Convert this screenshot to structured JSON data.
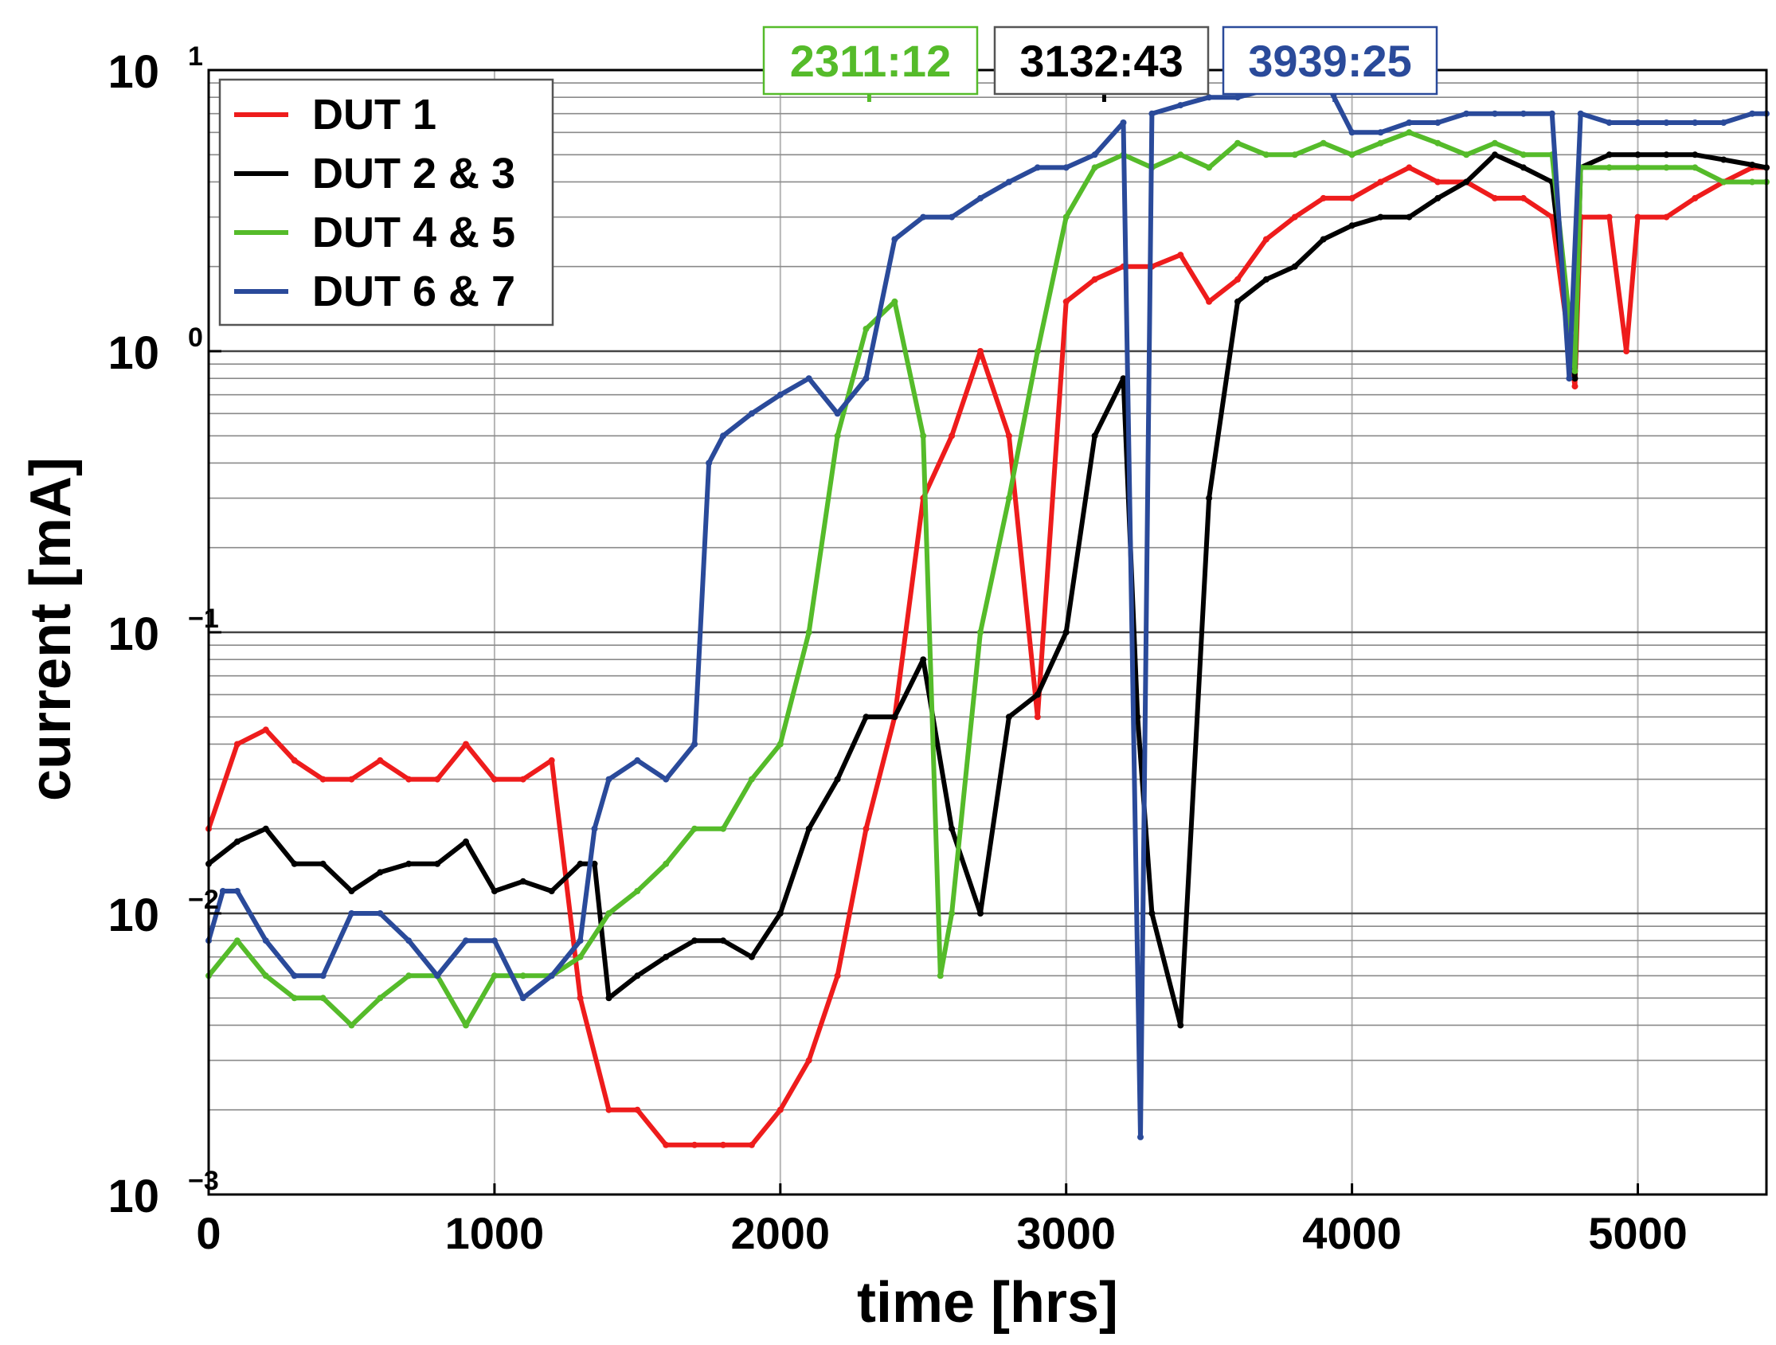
{
  "chart_data": {
    "type": "line",
    "title": "",
    "xlabel": "time [hrs]",
    "ylabel": "current [mA]",
    "xlim": [
      0,
      5450
    ],
    "ylim": [
      0.001,
      10
    ],
    "yscale": "log",
    "grid": true,
    "legend_position": "top-left",
    "x_ticks": [
      0,
      1000,
      2000,
      3000,
      4000,
      5000
    ],
    "x_tick_labels": [
      "0",
      "1000",
      "2000",
      "3000",
      "4000",
      "5000"
    ],
    "y_ticks": [
      0.001,
      0.01,
      0.1,
      1,
      10
    ],
    "y_tick_bases": [
      "10",
      "10",
      "10",
      "10",
      "10"
    ],
    "y_tick_exponents": [
      "−3",
      "−2",
      "−1",
      "0",
      "1"
    ],
    "annotations": [
      {
        "text": "2311:12",
        "x": 2311,
        "color": "#55bb2a",
        "bordercolor": "#55bb2a"
      },
      {
        "text": "3132:43",
        "x": 3133,
        "color": "#000000",
        "bordercolor": "#555555"
      },
      {
        "text": "3939:25",
        "x": 3939,
        "color": "#2a4a9a",
        "bordercolor": "#2a4a9a"
      }
    ],
    "series": [
      {
        "name": "DUT 1",
        "color": "#ee1c1c",
        "x": [
          0,
          100,
          200,
          300,
          400,
          500,
          600,
          700,
          800,
          900,
          1000,
          1100,
          1200,
          1300,
          1400,
          1500,
          1600,
          1700,
          1800,
          1900,
          2000,
          2100,
          2200,
          2300,
          2400,
          2500,
          2600,
          2700,
          2800,
          2900,
          3000,
          3100,
          3200,
          3300,
          3400,
          3500,
          3600,
          3700,
          3800,
          3900,
          4000,
          4100,
          4200,
          4300,
          4400,
          4500,
          4600,
          4700,
          4780,
          4800,
          4900,
          4960,
          5000,
          5100,
          5200,
          5300,
          5400,
          5450
        ],
        "values": [
          0.02,
          0.04,
          0.045,
          0.035,
          0.03,
          0.03,
          0.035,
          0.03,
          0.03,
          0.04,
          0.03,
          0.03,
          0.035,
          0.005,
          0.002,
          0.002,
          0.0015,
          0.0015,
          0.0015,
          0.0015,
          0.002,
          0.003,
          0.006,
          0.02,
          0.05,
          0.3,
          0.5,
          1.0,
          0.5,
          0.05,
          1.5,
          1.8,
          2.0,
          2.0,
          2.2,
          1.5,
          1.8,
          2.5,
          3.0,
          3.5,
          3.5,
          4.0,
          4.5,
          4.0,
          4.0,
          3.5,
          3.5,
          3.0,
          0.75,
          3.0,
          3.0,
          1.0,
          3.0,
          3.0,
          3.5,
          4.0,
          4.5,
          4.5
        ]
      },
      {
        "name": "DUT 2 & 3",
        "color": "#000000",
        "x": [
          0,
          100,
          200,
          300,
          400,
          500,
          600,
          700,
          800,
          900,
          1000,
          1100,
          1200,
          1300,
          1350,
          1400,
          1500,
          1600,
          1700,
          1800,
          1900,
          2000,
          2100,
          2200,
          2300,
          2400,
          2500,
          2600,
          2700,
          2800,
          2900,
          3000,
          3100,
          3200,
          3250,
          3300,
          3400,
          3500,
          3600,
          3700,
          3800,
          3900,
          4000,
          4100,
          4200,
          4300,
          4400,
          4500,
          4600,
          4700,
          4780,
          4800,
          4900,
          5000,
          5100,
          5200,
          5300,
          5400,
          5450
        ],
        "values": [
          0.015,
          0.018,
          0.02,
          0.015,
          0.015,
          0.012,
          0.014,
          0.015,
          0.015,
          0.018,
          0.012,
          0.013,
          0.012,
          0.015,
          0.015,
          0.005,
          0.006,
          0.007,
          0.008,
          0.008,
          0.007,
          0.01,
          0.02,
          0.03,
          0.05,
          0.05,
          0.08,
          0.02,
          0.01,
          0.05,
          0.06,
          0.1,
          0.5,
          0.8,
          0.05,
          0.01,
          0.004,
          0.3,
          1.5,
          1.8,
          2.0,
          2.5,
          2.8,
          3.0,
          3.0,
          3.5,
          4.0,
          5.0,
          4.5,
          4.0,
          0.8,
          4.5,
          5.0,
          5.0,
          5.0,
          5.0,
          4.8,
          4.6,
          4.5
        ]
      },
      {
        "name": "DUT 4 & 5",
        "color": "#55bb2a",
        "x": [
          0,
          100,
          200,
          300,
          400,
          500,
          600,
          700,
          800,
          900,
          1000,
          1100,
          1200,
          1300,
          1400,
          1500,
          1600,
          1700,
          1800,
          1900,
          2000,
          2100,
          2200,
          2300,
          2400,
          2500,
          2560,
          2600,
          2700,
          2800,
          2900,
          3000,
          3100,
          3200,
          3300,
          3400,
          3500,
          3600,
          3700,
          3800,
          3900,
          4000,
          4100,
          4200,
          4300,
          4400,
          4500,
          4600,
          4700,
          4780,
          4800,
          4900,
          5000,
          5100,
          5200,
          5300,
          5400,
          5450
        ],
        "values": [
          0.006,
          0.008,
          0.006,
          0.005,
          0.005,
          0.004,
          0.005,
          0.006,
          0.006,
          0.004,
          0.006,
          0.006,
          0.006,
          0.007,
          0.01,
          0.012,
          0.015,
          0.02,
          0.02,
          0.03,
          0.04,
          0.1,
          0.5,
          1.2,
          1.5,
          0.5,
          0.006,
          0.01,
          0.1,
          0.3,
          1.0,
          3.0,
          4.5,
          5.0,
          4.5,
          5.0,
          4.5,
          5.5,
          5.0,
          5.0,
          5.5,
          5.0,
          5.5,
          6.0,
          5.5,
          5.0,
          5.5,
          5.0,
          5.0,
          0.85,
          4.5,
          4.5,
          4.5,
          4.5,
          4.5,
          4.0,
          4.0,
          4.0
        ]
      },
      {
        "name": "DUT 6 & 7",
        "color": "#2a4a9a",
        "x": [
          0,
          50,
          100,
          200,
          300,
          400,
          500,
          600,
          700,
          800,
          900,
          1000,
          1100,
          1200,
          1300,
          1350,
          1400,
          1500,
          1600,
          1700,
          1750,
          1800,
          1900,
          2000,
          2100,
          2200,
          2300,
          2400,
          2500,
          2600,
          2700,
          2800,
          2900,
          3000,
          3100,
          3200,
          3260,
          3300,
          3400,
          3500,
          3600,
          3700,
          3800,
          3900,
          4000,
          4100,
          4200,
          4300,
          4400,
          4500,
          4600,
          4700,
          4760,
          4800,
          4900,
          5000,
          5100,
          5200,
          5300,
          5400,
          5450
        ],
        "values": [
          0.008,
          0.012,
          0.012,
          0.008,
          0.006,
          0.006,
          0.01,
          0.01,
          0.008,
          0.006,
          0.008,
          0.008,
          0.005,
          0.006,
          0.008,
          0.02,
          0.03,
          0.035,
          0.03,
          0.04,
          0.4,
          0.5,
          0.6,
          0.7,
          0.8,
          0.6,
          0.8,
          2.5,
          3.0,
          3.0,
          3.5,
          4.0,
          4.5,
          4.5,
          5.0,
          6.5,
          0.0016,
          7.0,
          7.5,
          8.0,
          8.0,
          8.5,
          9.0,
          9.5,
          6.0,
          6.0,
          6.5,
          6.5,
          7.0,
          7.0,
          7.0,
          7.0,
          0.8,
          7.0,
          6.5,
          6.5,
          6.5,
          6.5,
          6.5,
          7.0,
          7.0
        ]
      }
    ]
  }
}
